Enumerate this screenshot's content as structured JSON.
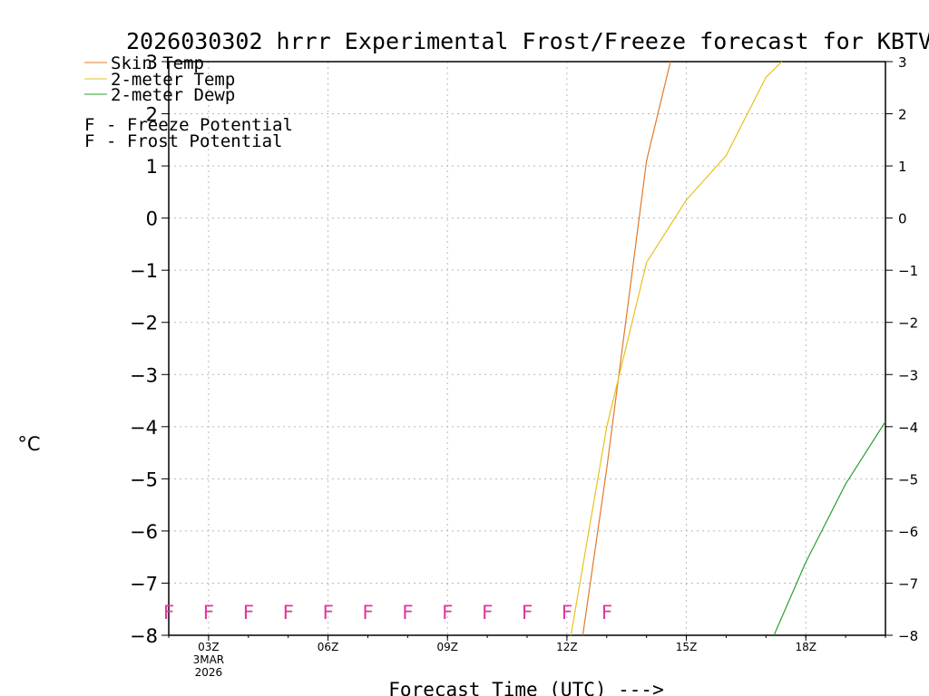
{
  "chart_data": {
    "type": "line",
    "title": "2026030302 hrrr Experimental Frost/Freeze forecast for KBTV",
    "xlabel": "Forecast Time (UTC) --->",
    "ylabel": "°C",
    "ylim": [
      -8,
      3
    ],
    "xlim": [
      2,
      20
    ],
    "y_ticks": [
      3,
      2,
      1,
      0,
      -1,
      -2,
      -3,
      -4,
      -5,
      -6,
      -7,
      -8
    ],
    "x_ticks": [
      {
        "hour": 3,
        "label": "03Z",
        "sub1": "3MAR",
        "sub2": "2026"
      },
      {
        "hour": 6,
        "label": "06Z"
      },
      {
        "hour": 9,
        "label": "09Z"
      },
      {
        "hour": 12,
        "label": "12Z"
      },
      {
        "hour": 15,
        "label": "15Z"
      },
      {
        "hour": 18,
        "label": "18Z"
      }
    ],
    "series": [
      {
        "name": "Skin Temp",
        "color": "#e07a2a",
        "x": [
          12.4,
          13,
          14,
          14.6
        ],
        "y": [
          -8,
          -4.8,
          1.1,
          3
        ]
      },
      {
        "name": "2-meter Temp",
        "color": "#e6c21e",
        "x": [
          12.1,
          13,
          14,
          15,
          16,
          17,
          17.4
        ],
        "y": [
          -8,
          -4,
          -0.85,
          0.35,
          1.2,
          2.7,
          3
        ]
      },
      {
        "name": "2-meter Dewp",
        "color": "#2ca02c",
        "x": [
          17.2,
          18,
          19,
          20
        ],
        "y": [
          -8,
          -6.6,
          -5.1,
          -3.9
        ]
      }
    ],
    "markers": {
      "label": "F",
      "color": "#e0379b",
      "y": -7.55,
      "hours": [
        2,
        3,
        4,
        5,
        6,
        7,
        8,
        9,
        10,
        11,
        12,
        13
      ]
    },
    "legend": {
      "placement": "top-left",
      "items": [
        {
          "label": "Skin Temp",
          "color": "#e07a2a"
        },
        {
          "label": "2-meter Temp",
          "color": "#e6c21e"
        },
        {
          "label": "2-meter Dewp",
          "color": "#2ca02c"
        }
      ],
      "potentials": [
        {
          "marker": "F",
          "marker_color": "#e0379b",
          "text": "- Freeze Potential"
        },
        {
          "marker": "F",
          "marker_color": "#4a55d6",
          "text": "- Frost Potential"
        }
      ]
    }
  }
}
